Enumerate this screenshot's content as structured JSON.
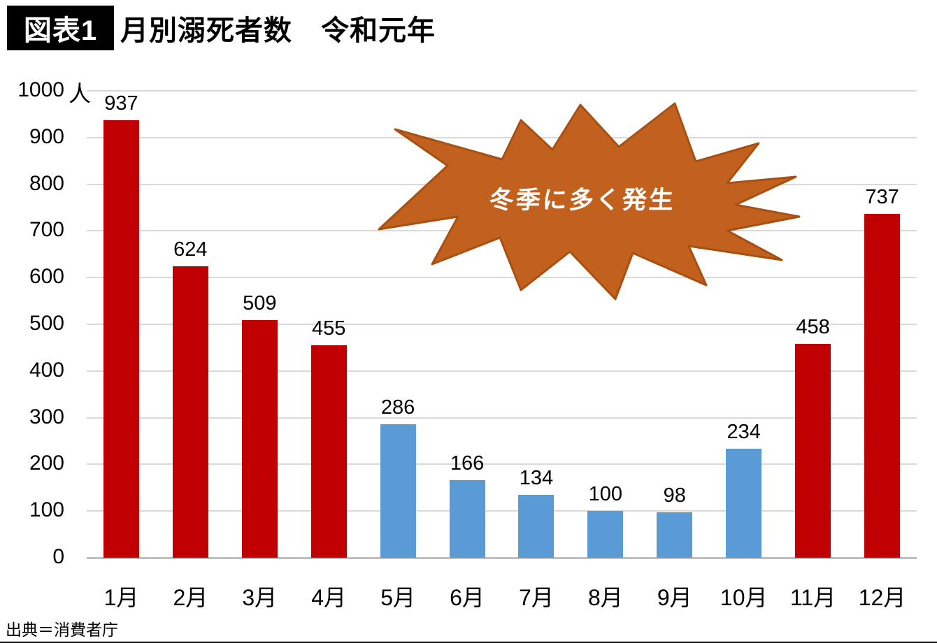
{
  "figure": {
    "tag_label": "図表1",
    "title": "月別溺死者数　令和元年",
    "source": "出典＝消費者庁"
  },
  "annotation": {
    "burst_label": "冬季に多く発生",
    "burst_fill": "#C2611E",
    "burst_stroke": "#A84F12",
    "burst_text_color": "#FFFFFF"
  },
  "chart_data": {
    "type": "bar",
    "title": "月別溺死者数　令和元年",
    "categories": [
      "1月",
      "2月",
      "3月",
      "4月",
      "5月",
      "6月",
      "7月",
      "8月",
      "9月",
      "10月",
      "11月",
      "12月"
    ],
    "values": [
      937,
      624,
      509,
      455,
      286,
      166,
      134,
      100,
      98,
      234,
      458,
      737
    ],
    "bar_colors": [
      "red",
      "red",
      "red",
      "red",
      "blue",
      "blue",
      "blue",
      "blue",
      "blue",
      "blue",
      "red",
      "red"
    ],
    "colors": {
      "red": "#C00000",
      "blue": "#5B9BD5"
    },
    "xlabel": "",
    "ylabel": "",
    "y_unit": "人",
    "ylim": [
      0,
      1000
    ],
    "y_ticks": [
      0,
      100,
      200,
      300,
      400,
      500,
      600,
      700,
      800,
      900,
      1000
    ],
    "grid": true,
    "gridline_color": "#D9D9D9",
    "axis_line_color": "#BFBFBF",
    "legend": "none",
    "data_labels": true
  }
}
